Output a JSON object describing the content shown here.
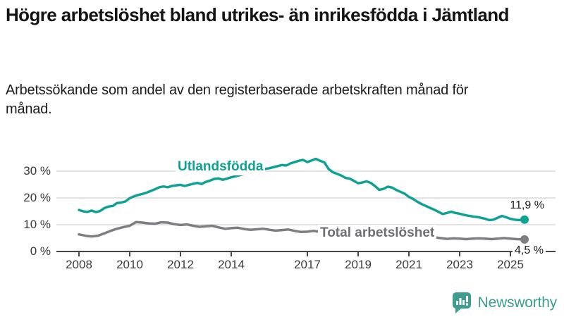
{
  "colors": {
    "accent_teal": "#0fa294",
    "series_gray": "#7d7d82",
    "label_gray": "#6e6e73",
    "text_dark": "#141414",
    "axis_text": "#3b3b3b",
    "gridline": "#d9d9d9",
    "axis_line": "#474747",
    "logo_teal": "#3c9d90"
  },
  "footer": {
    "brand": "Newsworthy"
  },
  "chart_data": {
    "type": "line",
    "title": "Högre arbetslöshet bland utrikes- än inrikesfödda i Jämtland",
    "subtitle": "Arbetssökande som andel av den registerbaserade arbetskraften månad för månad.",
    "xlabel": "",
    "ylabel": "",
    "grid": true,
    "legend_position": "inline-labels",
    "x_axis": {
      "tick_values": [
        2008,
        2010,
        2012,
        2014,
        2017,
        2019,
        2021,
        2023,
        2025
      ],
      "tick_labels": [
        "2008",
        "2010",
        "2012",
        "2014",
        "2017",
        "2019",
        "2021",
        "2023",
        "2025"
      ],
      "range": [
        2007.1,
        2026.4
      ]
    },
    "y_axis": {
      "tick_values": [
        0,
        10,
        20,
        30
      ],
      "tick_labels": [
        "0 %",
        "10 %",
        "20 %",
        "30 %"
      ],
      "range": [
        0,
        36
      ]
    },
    "series": [
      {
        "name": "Utlandsfödda",
        "color": "#0fa294",
        "end_label": "11,9 %",
        "end_value": 11.9,
        "points": [
          [
            2008.0,
            15.5
          ],
          [
            2008.17,
            15.0
          ],
          [
            2008.33,
            14.8
          ],
          [
            2008.5,
            15.3
          ],
          [
            2008.67,
            14.7
          ],
          [
            2008.83,
            15.1
          ],
          [
            2009.0,
            16.2
          ],
          [
            2009.17,
            16.8
          ],
          [
            2009.33,
            17.0
          ],
          [
            2009.5,
            18.1
          ],
          [
            2009.67,
            18.3
          ],
          [
            2009.83,
            18.7
          ],
          [
            2010.0,
            19.9
          ],
          [
            2010.17,
            20.6
          ],
          [
            2010.33,
            21.1
          ],
          [
            2010.5,
            21.5
          ],
          [
            2010.67,
            22.0
          ],
          [
            2010.83,
            22.6
          ],
          [
            2011.0,
            23.3
          ],
          [
            2011.17,
            24.0
          ],
          [
            2011.33,
            24.3
          ],
          [
            2011.5,
            24.0
          ],
          [
            2011.67,
            24.5
          ],
          [
            2011.83,
            24.7
          ],
          [
            2012.0,
            24.9
          ],
          [
            2012.17,
            24.5
          ],
          [
            2012.33,
            24.9
          ],
          [
            2012.5,
            25.3
          ],
          [
            2012.67,
            25.6
          ],
          [
            2012.83,
            25.2
          ],
          [
            2013.0,
            26.0
          ],
          [
            2013.17,
            26.5
          ],
          [
            2013.33,
            27.1
          ],
          [
            2013.5,
            27.3
          ],
          [
            2013.67,
            26.8
          ],
          [
            2013.83,
            27.2
          ],
          [
            2014.0,
            27.7
          ],
          [
            2014.25,
            28.3
          ],
          [
            2014.5,
            28.9
          ],
          [
            2014.75,
            29.5
          ],
          [
            2015.0,
            30.1
          ],
          [
            2015.25,
            30.7
          ],
          [
            2015.5,
            31.1
          ],
          [
            2015.75,
            31.7
          ],
          [
            2016.0,
            32.3
          ],
          [
            2016.17,
            32.1
          ],
          [
            2016.33,
            32.9
          ],
          [
            2016.5,
            33.4
          ],
          [
            2016.67,
            33.9
          ],
          [
            2016.83,
            34.2
          ],
          [
            2017.0,
            33.4
          ],
          [
            2017.17,
            34.0
          ],
          [
            2017.33,
            34.6
          ],
          [
            2017.5,
            33.9
          ],
          [
            2017.67,
            33.3
          ],
          [
            2017.83,
            30.9
          ],
          [
            2018.0,
            29.6
          ],
          [
            2018.17,
            29.0
          ],
          [
            2018.33,
            28.4
          ],
          [
            2018.5,
            27.5
          ],
          [
            2018.67,
            27.2
          ],
          [
            2018.83,
            26.4
          ],
          [
            2019.0,
            25.5
          ],
          [
            2019.17,
            25.8
          ],
          [
            2019.33,
            26.2
          ],
          [
            2019.5,
            25.6
          ],
          [
            2019.67,
            24.4
          ],
          [
            2019.83,
            23.0
          ],
          [
            2020.0,
            23.4
          ],
          [
            2020.17,
            24.2
          ],
          [
            2020.33,
            23.9
          ],
          [
            2020.5,
            23.0
          ],
          [
            2020.67,
            22.3
          ],
          [
            2020.83,
            21.6
          ],
          [
            2021.0,
            20.4
          ],
          [
            2021.17,
            19.6
          ],
          [
            2021.33,
            18.6
          ],
          [
            2021.5,
            17.7
          ],
          [
            2021.67,
            17.0
          ],
          [
            2021.83,
            16.3
          ],
          [
            2022.0,
            15.6
          ],
          [
            2022.17,
            14.8
          ],
          [
            2022.33,
            14.0
          ],
          [
            2022.5,
            14.4
          ],
          [
            2022.67,
            14.9
          ],
          [
            2022.83,
            14.4
          ],
          [
            2023.0,
            14.1
          ],
          [
            2023.25,
            13.5
          ],
          [
            2023.5,
            13.1
          ],
          [
            2023.75,
            12.8
          ],
          [
            2024.0,
            12.2
          ],
          [
            2024.17,
            11.7
          ],
          [
            2024.33,
            11.9
          ],
          [
            2024.5,
            12.6
          ],
          [
            2024.67,
            13.3
          ],
          [
            2024.83,
            12.8
          ],
          [
            2025.0,
            12.2
          ],
          [
            2025.17,
            11.9
          ],
          [
            2025.33,
            11.7
          ],
          [
            2025.5,
            11.9
          ]
        ]
      },
      {
        "name": "Total arbetslöshet",
        "color": "#7d7d82",
        "end_label": "4,5 %",
        "end_value": 4.5,
        "points": [
          [
            2008.0,
            6.4
          ],
          [
            2008.25,
            5.9
          ],
          [
            2008.5,
            5.6
          ],
          [
            2008.75,
            5.9
          ],
          [
            2009.0,
            6.8
          ],
          [
            2009.25,
            7.7
          ],
          [
            2009.5,
            8.5
          ],
          [
            2009.75,
            9.1
          ],
          [
            2010.0,
            9.6
          ],
          [
            2010.25,
            11.0
          ],
          [
            2010.5,
            10.8
          ],
          [
            2010.75,
            10.5
          ],
          [
            2011.0,
            10.4
          ],
          [
            2011.25,
            10.9
          ],
          [
            2011.5,
            10.8
          ],
          [
            2011.75,
            10.2
          ],
          [
            2012.0,
            9.9
          ],
          [
            2012.25,
            10.1
          ],
          [
            2012.5,
            9.6
          ],
          [
            2012.75,
            9.2
          ],
          [
            2013.0,
            9.4
          ],
          [
            2013.25,
            9.6
          ],
          [
            2013.5,
            9.0
          ],
          [
            2013.75,
            8.5
          ],
          [
            2014.0,
            8.7
          ],
          [
            2014.25,
            8.9
          ],
          [
            2014.5,
            8.4
          ],
          [
            2014.75,
            8.1
          ],
          [
            2015.0,
            8.3
          ],
          [
            2015.25,
            8.5
          ],
          [
            2015.5,
            8.1
          ],
          [
            2015.75,
            7.8
          ],
          [
            2016.0,
            8.0
          ],
          [
            2016.25,
            8.2
          ],
          [
            2016.5,
            7.7
          ],
          [
            2016.75,
            7.3
          ],
          [
            2017.0,
            7.4
          ],
          [
            2017.25,
            7.7
          ],
          [
            2017.5,
            7.3
          ],
          [
            2017.75,
            6.9
          ],
          [
            2018.0,
            6.9
          ],
          [
            2018.25,
            7.1
          ],
          [
            2018.5,
            6.7
          ],
          [
            2018.75,
            6.3
          ],
          [
            2019.0,
            6.3
          ],
          [
            2019.25,
            6.5
          ],
          [
            2019.5,
            6.2
          ],
          [
            2019.75,
            6.0
          ],
          [
            2020.0,
            6.4
          ],
          [
            2020.25,
            7.6
          ],
          [
            2020.5,
            7.8
          ],
          [
            2020.75,
            7.4
          ],
          [
            2021.0,
            7.0
          ],
          [
            2021.25,
            6.6
          ],
          [
            2021.5,
            6.1
          ],
          [
            2021.75,
            5.7
          ],
          [
            2022.0,
            5.3
          ],
          [
            2022.25,
            5.0
          ],
          [
            2022.5,
            4.7
          ],
          [
            2022.75,
            4.9
          ],
          [
            2023.0,
            4.8
          ],
          [
            2023.25,
            4.6
          ],
          [
            2023.5,
            4.8
          ],
          [
            2023.75,
            4.9
          ],
          [
            2024.0,
            4.8
          ],
          [
            2024.25,
            4.6
          ],
          [
            2024.5,
            4.8
          ],
          [
            2024.75,
            5.0
          ],
          [
            2025.0,
            4.8
          ],
          [
            2025.25,
            4.6
          ],
          [
            2025.5,
            4.5
          ]
        ]
      }
    ]
  }
}
